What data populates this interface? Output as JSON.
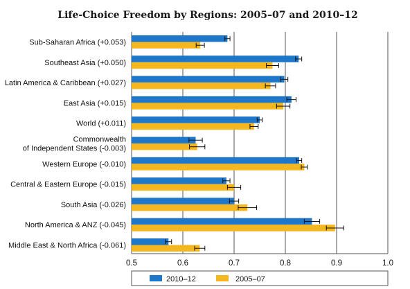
{
  "chart_data": {
    "type": "bar",
    "orientation": "horizontal",
    "title": "Life-Choice Freedom by Regions: 2005–07 and 2010–12",
    "xlabel": "",
    "ylabel": "",
    "xlim": [
      0.5,
      1.0
    ],
    "xticks": [
      "0.5",
      "0.6",
      "0.7",
      "0.8",
      "0.9",
      "1.0"
    ],
    "grid": true,
    "legend_position": "bottom",
    "categories": [
      [
        "Sub-Saharan Africa (+0.053)"
      ],
      [
        "Southeast Asia (+0.050)"
      ],
      [
        "Latin America & Caribbean (+0.027)"
      ],
      [
        "East Asia (+0.015)"
      ],
      [
        "World (+0.011)"
      ],
      [
        "Commonwealth",
        "of Independent States (-0.003)"
      ],
      [
        "Western Europe (-0.010)"
      ],
      [
        "Central & Eastern Europe (-0.015)"
      ],
      [
        "South Asia (-0.026)"
      ],
      [
        "North America & ANZ (-0.045)"
      ],
      [
        "Middle East & North Africa (-0.061)"
      ]
    ],
    "series": [
      {
        "name": "2010–12",
        "color": "#1f77c9",
        "values": [
          0.687,
          0.826,
          0.798,
          0.812,
          0.75,
          0.625,
          0.827,
          0.685,
          0.7,
          0.852,
          0.572
        ],
        "errors": [
          0.005,
          0.006,
          0.007,
          0.009,
          0.005,
          0.013,
          0.005,
          0.007,
          0.009,
          0.015,
          0.006
        ]
      },
      {
        "name": "2005–07",
        "color": "#f5b71f",
        "values": [
          0.634,
          0.775,
          0.771,
          0.796,
          0.739,
          0.628,
          0.837,
          0.7,
          0.726,
          0.897,
          0.633
        ],
        "errors": [
          0.008,
          0.012,
          0.01,
          0.013,
          0.008,
          0.015,
          0.006,
          0.013,
          0.018,
          0.017,
          0.01
        ]
      }
    ]
  }
}
